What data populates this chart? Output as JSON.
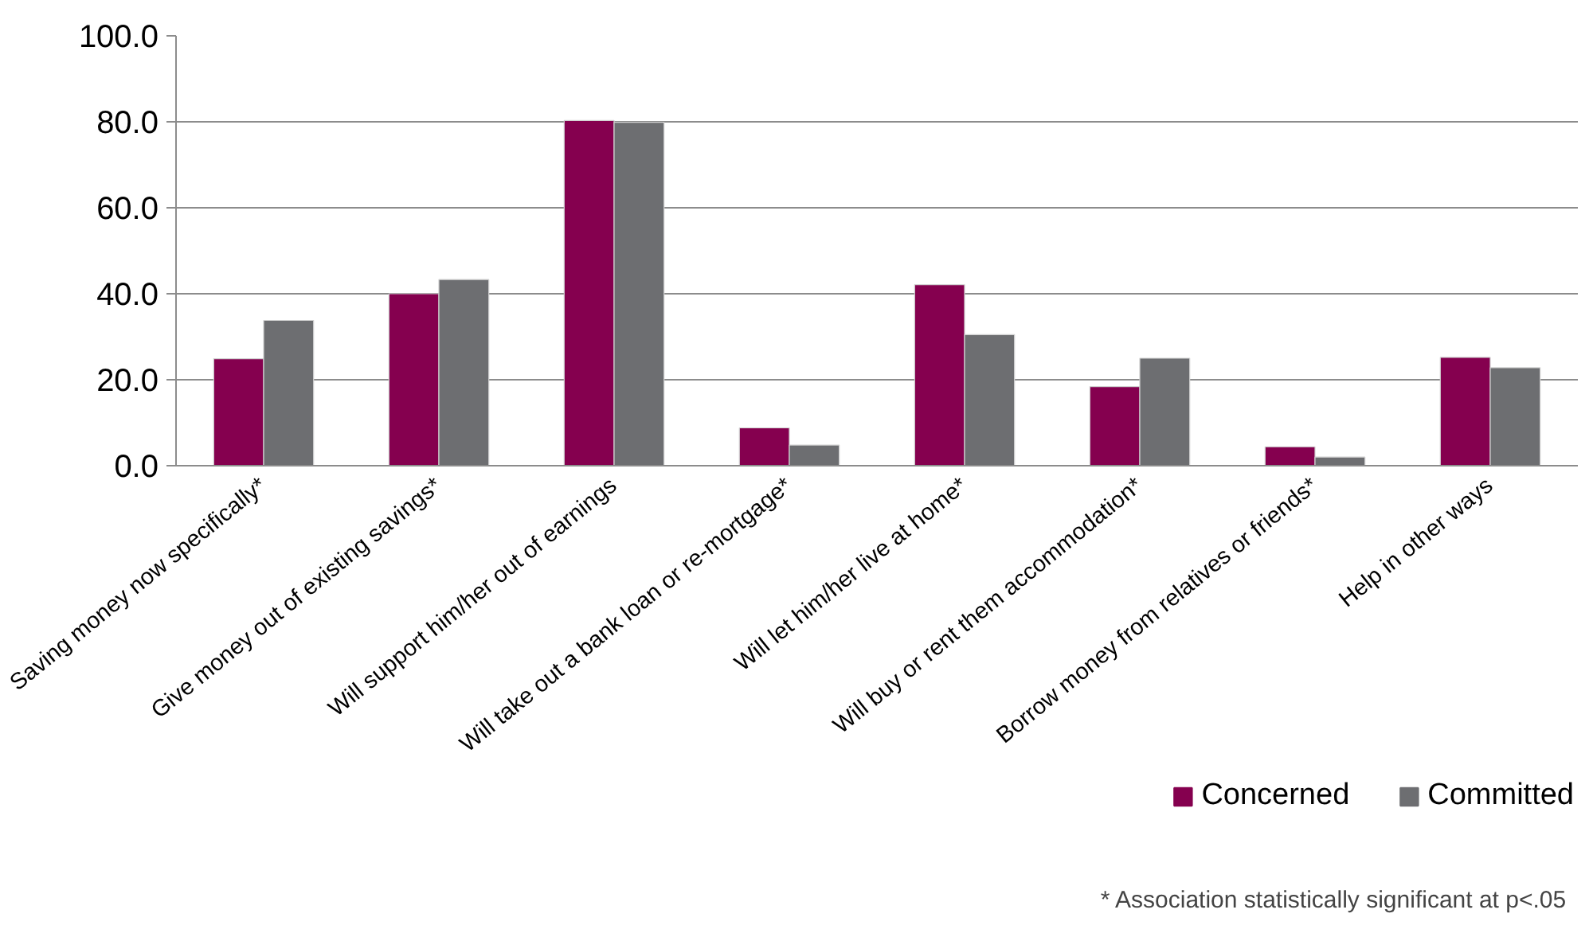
{
  "chart_data": {
    "type": "bar",
    "categories": [
      "Saving money now specifically*",
      "Give money out of existing savings*",
      "Will support him/her out of earnings",
      "Will take out a bank loan or re-mortgage*",
      "Will let him/her live at home*",
      "Will buy or rent them accommodation*",
      "Borrow money from relatives or friends*",
      "Help in other ways"
    ],
    "series": [
      {
        "name": "Concerned",
        "color": "#85004f",
        "values": [
          24.9,
          40.0,
          80.3,
          8.8,
          42.1,
          18.4,
          4.4,
          25.2
        ]
      },
      {
        "name": "Committed",
        "color": "#6d6e71",
        "values": [
          33.8,
          43.3,
          79.9,
          4.8,
          30.5,
          25.0,
          2.0,
          22.8
        ]
      }
    ],
    "ylim": [
      0,
      100
    ],
    "yticks": [
      {
        "value": 0,
        "label": "0.0"
      },
      {
        "value": 20,
        "label": "20.0"
      },
      {
        "value": 40,
        "label": "40.0"
      },
      {
        "value": 60,
        "label": "60.0"
      },
      {
        "value": 80,
        "label": "80.0"
      },
      {
        "value": 100,
        "label": "100.0"
      }
    ],
    "grid": "y",
    "legend": "bottom right",
    "annotations": [
      "* Association statistically significant  at p<.05"
    ]
  }
}
